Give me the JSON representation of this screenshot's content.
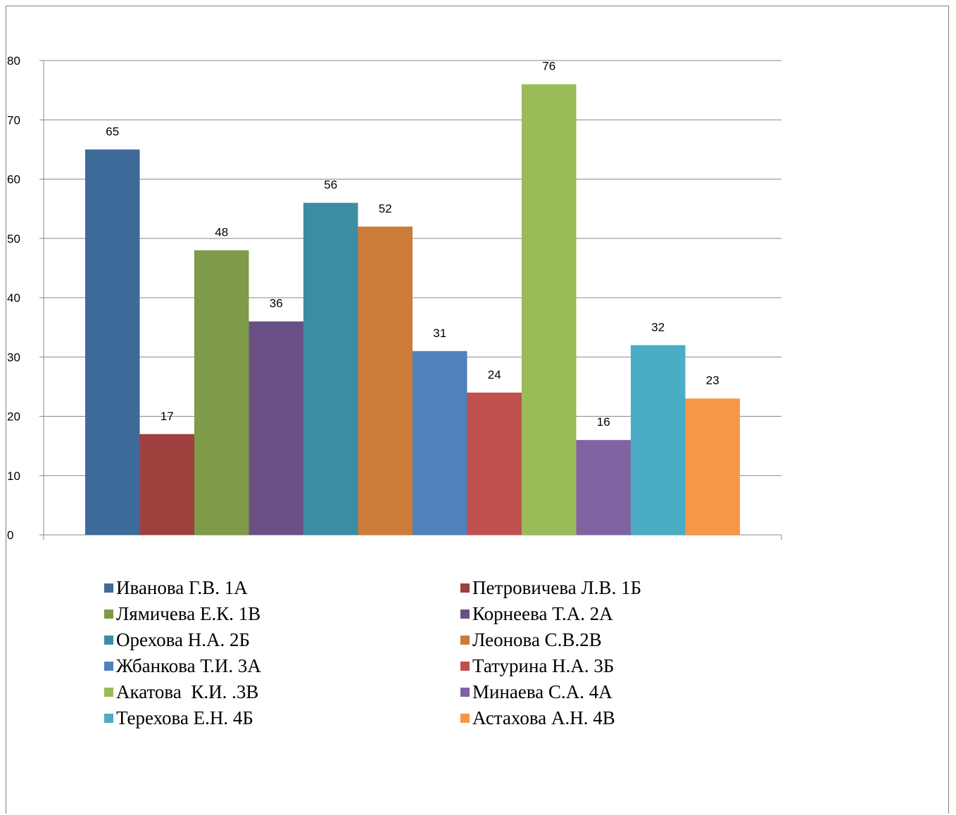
{
  "chart_data": {
    "type": "bar",
    "title": "",
    "xlabel": "",
    "ylabel": "",
    "ylim": [
      0,
      80
    ],
    "yticks": [
      0,
      10,
      20,
      30,
      40,
      50,
      60,
      70,
      80
    ],
    "grid": true,
    "legend_position": "bottom",
    "series": [
      {
        "name": "Иванова Г.В. 1А",
        "value": 65,
        "color": "#3E6A9A"
      },
      {
        "name": "Петровичева Л.В. 1Б",
        "value": 17,
        "color": "#9E413E"
      },
      {
        "name": "Лямичева Е.К. 1В",
        "value": 48,
        "color": "#7F9A48"
      },
      {
        "name": "Корнеева Т.А. 2А",
        "value": 36,
        "color": "#695185"
      },
      {
        "name": "Орехова Н.А. 2Б",
        "value": 56,
        "color": "#3C8DA3"
      },
      {
        "name": "Леонова С.В.2В",
        "value": 52,
        "color": "#CC7B38"
      },
      {
        "name": "Жбанкова Т.И. 3А",
        "value": 31,
        "color": "#4F81BD"
      },
      {
        "name": "Татурина Н.А. 3Б",
        "value": 24,
        "color": "#C0504D"
      },
      {
        "name": "Акатова  К.И. .3В",
        "value": 76,
        "color": "#9BBB59"
      },
      {
        "name": "Минаева С.А. 4А",
        "value": 16,
        "color": "#8064A2"
      },
      {
        "name": "Терехова Е.Н. 4Б",
        "value": 32,
        "color": "#4BACC6"
      },
      {
        "name": "Астахова А.Н. 4В",
        "value": 23,
        "color": "#F79646"
      }
    ]
  }
}
